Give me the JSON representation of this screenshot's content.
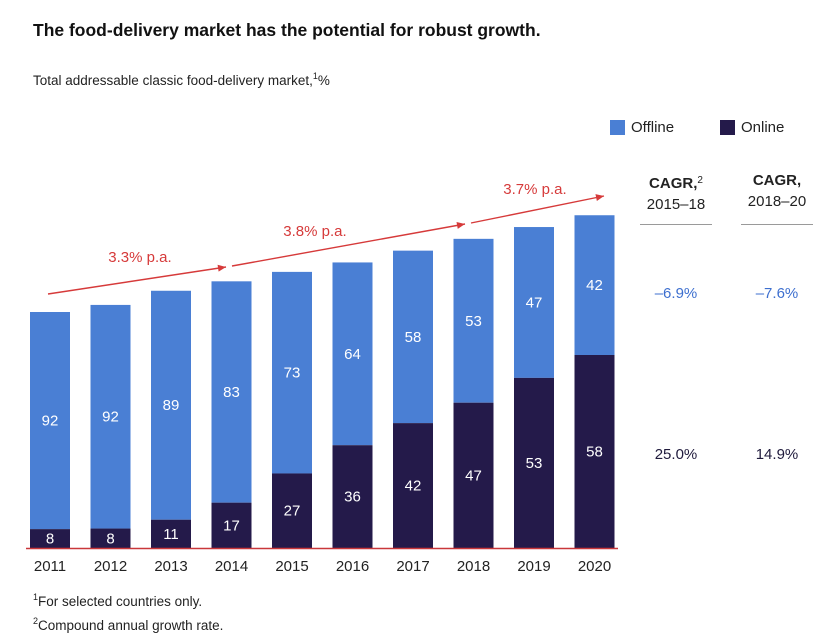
{
  "title": "The food-delivery market has the potential for robust growth.",
  "subtitle": {
    "text": "Total addressable classic food-delivery market,",
    "footnote_mark": "1",
    "unit": "%"
  },
  "legend": {
    "placement": "top-right",
    "items": [
      {
        "label": "Offline",
        "color": "#4a7fd4"
      },
      {
        "label": "Online",
        "color": "#241a4a"
      }
    ]
  },
  "growth_annotations": [
    "3.3% p.a.",
    "3.8% p.a.",
    "3.7% p.a."
  ],
  "cagr": {
    "columns": [
      {
        "label": "CAGR,",
        "footnote_mark": "2",
        "period": "2015–18",
        "offline": "–6.9%",
        "online": "25.0%"
      },
      {
        "label": "CAGR,",
        "footnote_mark": "",
        "period": "2018–20",
        "offline": "–7.6%",
        "online": "14.9%"
      }
    ]
  },
  "footnotes": [
    {
      "mark": "1",
      "text": "For selected countries only."
    },
    {
      "mark": "2",
      "text": "Compound annual growth rate."
    }
  ],
  "chart_data": {
    "type": "bar",
    "stacked": true,
    "categories": [
      "2011",
      "2012",
      "2013",
      "2014",
      "2015",
      "2016",
      "2017",
      "2018",
      "2019",
      "2020"
    ],
    "series": [
      {
        "name": "Online",
        "color": "#241a4a",
        "values": [
          8,
          8,
          11,
          17,
          27,
          36,
          42,
          47,
          53,
          58
        ]
      },
      {
        "name": "Offline",
        "color": "#4a7fd4",
        "values": [
          92,
          92,
          89,
          83,
          73,
          64,
          58,
          53,
          47,
          42
        ]
      }
    ],
    "totals_index": [
      100,
      103,
      109,
      113,
      117,
      121,
      126,
      131,
      136,
      141
    ],
    "growth_segments": [
      {
        "label": "3.3% p.a.",
        "from": "2011",
        "to": "2014"
      },
      {
        "label": "3.8% p.a.",
        "from": "2014",
        "to": "2018"
      },
      {
        "label": "3.7% p.a.",
        "from": "2018",
        "to": "2020"
      }
    ],
    "grid": false
  }
}
